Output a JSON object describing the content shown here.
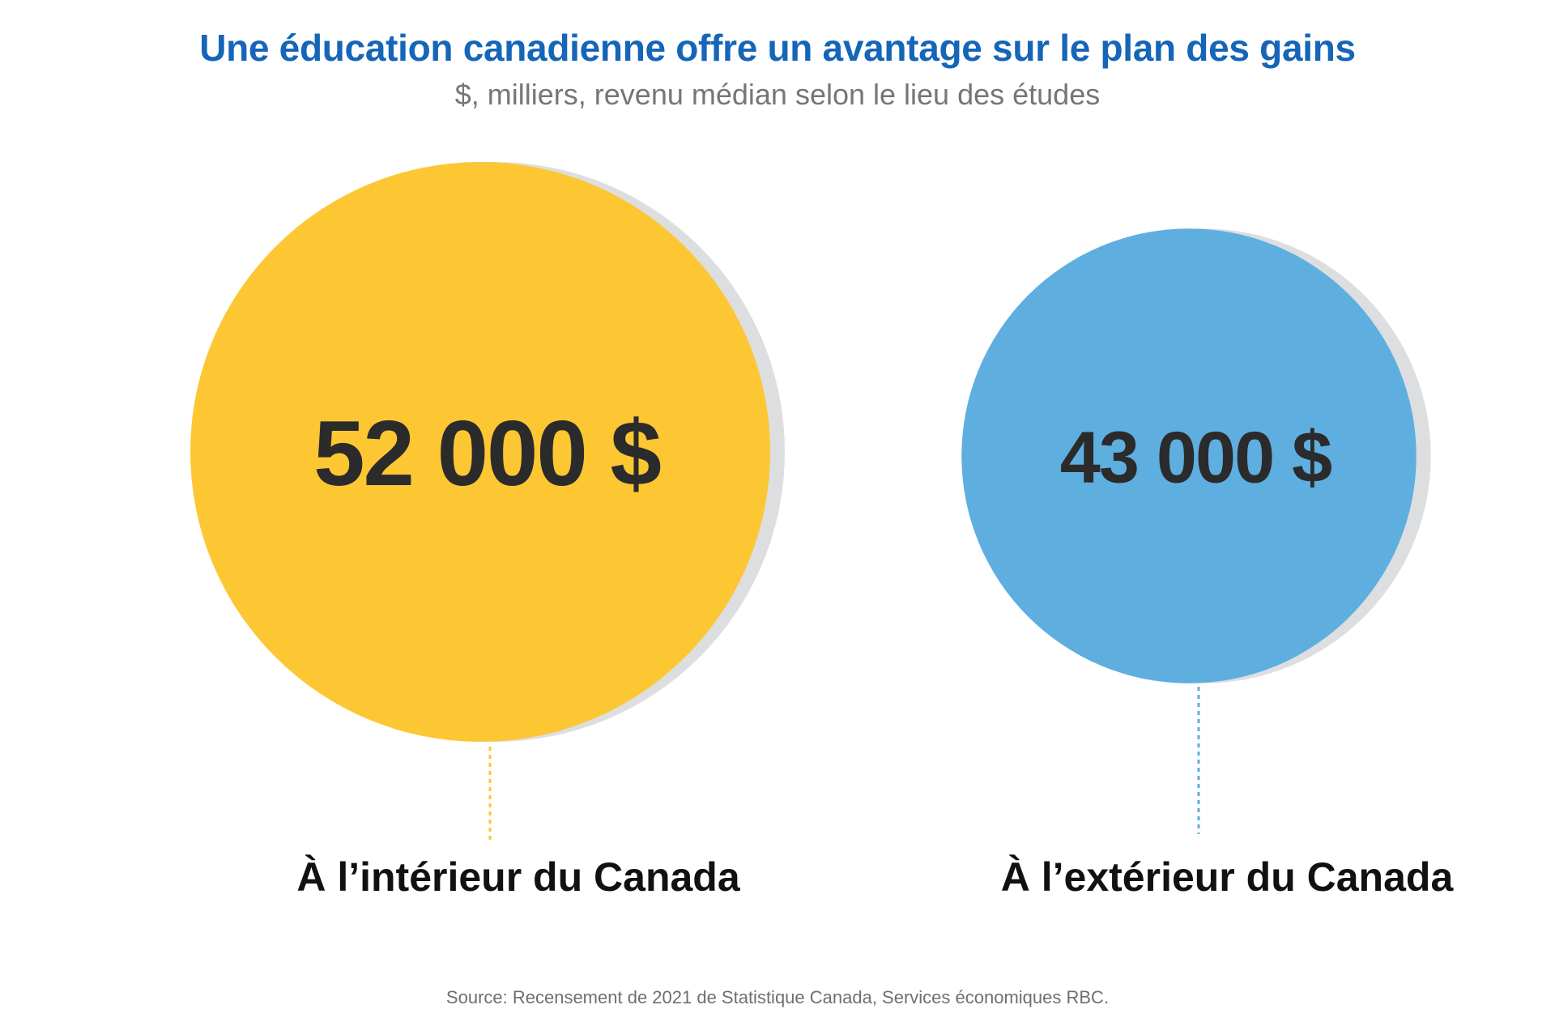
{
  "chart_data": {
    "type": "bubble",
    "title": "Une éducation canadienne offre un avantage sur le plan des gains",
    "subtitle": "$, milliers, revenu médian selon le lieu des études",
    "unit": "$",
    "categories": [
      "À l’intérieur du Canada",
      "À l’extérieur du Canada"
    ],
    "values": [
      52000,
      43000
    ],
    "value_labels": [
      "52 000 $",
      "43 000 $"
    ],
    "colors": [
      "#FCC733",
      "#5FAEE0"
    ],
    "shadow_color": "#DDDEE0",
    "value_text_color": "#2B2B2B",
    "label_text_color": "#111111",
    "source": "Source: Recensement de 2021 de Statistique Canada, Services économiques RBC."
  }
}
